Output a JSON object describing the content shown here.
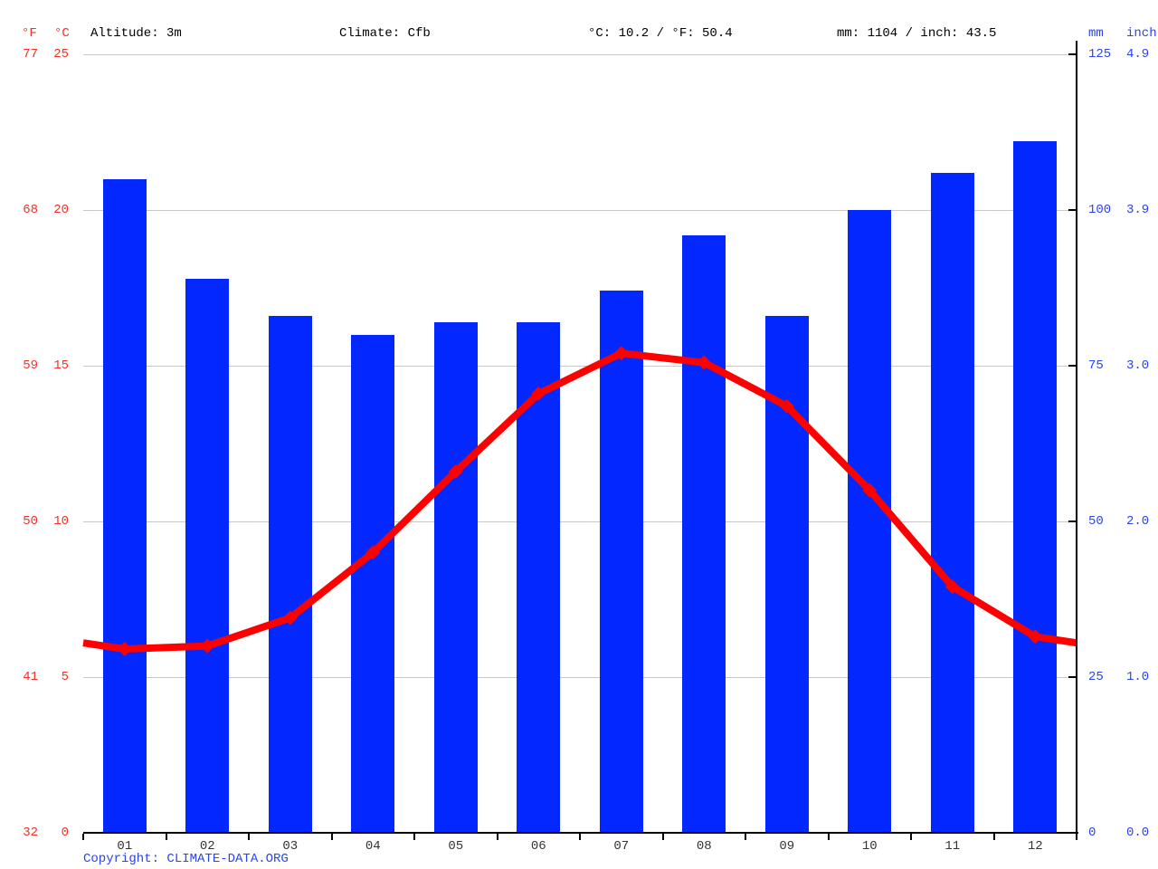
{
  "header": {
    "f_label": "°F",
    "c_label": "°C",
    "altitude": "Altitude: 3m",
    "climate": "Climate: Cfb",
    "temp_summary": "°C: 10.2 / °F: 50.4",
    "precip_summary": "mm: 1104 / inch: 43.5",
    "mm_label": "mm",
    "inch_label": "inch"
  },
  "axes": {
    "left_f_ticks": [
      "77",
      "68",
      "59",
      "50",
      "41",
      "32"
    ],
    "left_c_ticks": [
      "25",
      "20",
      "15",
      "10",
      "5",
      "0"
    ],
    "right_mm_ticks": [
      "125",
      "100",
      "75",
      "50",
      "25",
      "0"
    ],
    "right_inch_ticks": [
      "4.9",
      "3.9",
      "3.0",
      "2.0",
      "1.0",
      "0.0"
    ]
  },
  "footer": {
    "copyright": "Copyright: CLIMATE-DATA.ORG"
  },
  "colors": {
    "bar_blue": "#0328ff",
    "line_red": "#ff0000",
    "red_text": "#f42f25",
    "blue_text": "#2b43f0",
    "grid": "#c8c8c8"
  },
  "chart_data": {
    "type": "bar",
    "title": "Climate graph (climograph): monthly precipitation bars and mean temperature line",
    "categories": [
      "01",
      "02",
      "03",
      "04",
      "05",
      "06",
      "07",
      "08",
      "09",
      "10",
      "11",
      "12"
    ],
    "series": [
      {
        "name": "Precipitation (mm)",
        "type": "bar",
        "color": "#0328ff",
        "values": [
          105,
          89,
          83,
          80,
          82,
          82,
          87,
          96,
          83,
          100,
          106,
          111
        ]
      },
      {
        "name": "Mean temperature (°C)",
        "type": "line",
        "color": "#ff0000",
        "values": [
          5.9,
          6.0,
          6.9,
          9.0,
          11.6,
          14.1,
          15.4,
          15.1,
          13.7,
          11.0,
          7.9,
          6.3
        ]
      }
    ],
    "temp_axis": {
      "unit": "°C",
      "min": 0,
      "max": 25,
      "ticks": [
        0,
        5,
        10,
        15,
        20,
        25
      ]
    },
    "temp_axis_f": {
      "unit": "°F",
      "ticks": [
        32,
        41,
        50,
        59,
        68,
        77
      ]
    },
    "precip_axis": {
      "unit": "mm",
      "min": 0,
      "max": 125,
      "ticks": [
        0,
        25,
        50,
        75,
        100,
        125
      ]
    },
    "precip_axis_inch": {
      "unit": "inch",
      "ticks": [
        0.0,
        1.0,
        2.0,
        3.0,
        3.9,
        4.9
      ]
    },
    "annual_mean_temp_c": 10.2,
    "annual_mean_temp_f": 50.4,
    "annual_precip_mm": 1104,
    "annual_precip_inch": 43.5,
    "grid": "horizontal",
    "legend_position": "none"
  }
}
